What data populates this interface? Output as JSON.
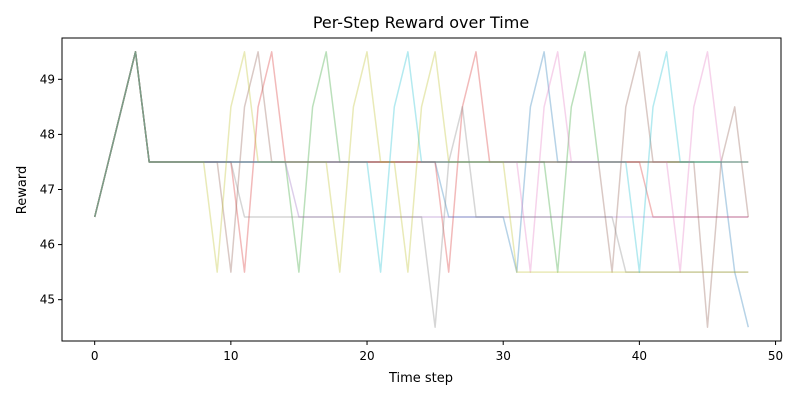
{
  "chart_data": {
    "type": "line",
    "title": "Per-Step Reward over Time",
    "xlabel": "Time step",
    "ylabel": "Reward",
    "xlim": [
      -2.4,
      50.4
    ],
    "ylim": [
      44.25,
      49.75
    ],
    "xticks": [
      0,
      10,
      20,
      30,
      40,
      50
    ],
    "yticks": [
      45,
      46,
      47,
      48,
      49
    ],
    "grid": false,
    "legend": "none",
    "x": [
      0,
      1,
      2,
      3,
      4,
      5,
      6,
      7,
      8,
      9,
      10,
      11,
      12,
      13,
      14,
      15,
      16,
      17,
      18,
      19,
      20,
      21,
      22,
      23,
      24,
      25,
      26,
      27,
      28,
      29,
      30,
      31,
      32,
      33,
      34,
      35,
      36,
      37,
      38,
      39,
      40,
      41,
      42,
      43,
      44,
      45,
      46,
      47,
      48
    ],
    "series": [
      {
        "color": "#1f77b4",
        "values": [
          46.5,
          47.5,
          48.5,
          49.5,
          47.5,
          47.5,
          47.5,
          47.5,
          47.5,
          47.5,
          47.5,
          47.5,
          47.5,
          47.5,
          47.5,
          47.5,
          47.5,
          47.5,
          47.5,
          47.5,
          47.5,
          47.5,
          47.5,
          47.5,
          47.5,
          47.5,
          46.5,
          46.5,
          46.5,
          46.5,
          46.5,
          45.5,
          48.5,
          49.5,
          47.5,
          47.5,
          47.5,
          47.5,
          47.5,
          47.5,
          47.5,
          47.5,
          47.5,
          47.5,
          47.5,
          47.5,
          47.5,
          45.5,
          44.5
        ]
      },
      {
        "color": "#ff7f0e",
        "values": [
          46.5,
          47.5,
          48.5,
          49.5,
          47.5,
          47.5,
          47.5,
          47.5,
          47.5,
          47.5,
          47.5,
          47.5,
          47.5,
          47.5,
          47.5,
          47.5,
          47.5,
          47.5,
          47.5,
          47.5,
          47.5,
          47.5,
          47.5,
          47.5,
          47.5,
          47.5,
          47.5,
          47.5,
          47.5,
          47.5,
          47.5,
          47.5,
          47.5,
          47.5,
          47.5,
          47.5,
          47.5,
          47.5,
          47.5,
          47.5,
          47.5,
          47.5,
          47.5,
          47.5,
          47.5,
          47.5,
          47.5,
          47.5,
          47.5
        ]
      },
      {
        "color": "#2ca02c",
        "values": [
          46.5,
          47.5,
          48.5,
          49.5,
          47.5,
          47.5,
          47.5,
          47.5,
          47.5,
          47.5,
          47.5,
          47.5,
          47.5,
          47.5,
          47.5,
          45.5,
          48.5,
          49.5,
          47.5,
          47.5,
          47.5,
          47.5,
          47.5,
          47.5,
          47.5,
          47.5,
          47.5,
          47.5,
          47.5,
          47.5,
          47.5,
          47.5,
          47.5,
          47.5,
          45.5,
          48.5,
          49.5,
          47.5,
          47.5,
          47.5,
          47.5,
          47.5,
          47.5,
          47.5,
          47.5,
          47.5,
          47.5,
          47.5,
          47.5
        ]
      },
      {
        "color": "#d62728",
        "values": [
          46.5,
          47.5,
          48.5,
          49.5,
          47.5,
          47.5,
          47.5,
          47.5,
          47.5,
          47.5,
          47.5,
          45.5,
          48.5,
          49.5,
          47.5,
          47.5,
          47.5,
          47.5,
          47.5,
          47.5,
          47.5,
          47.5,
          47.5,
          47.5,
          47.5,
          47.5,
          45.5,
          48.5,
          49.5,
          47.5,
          47.5,
          47.5,
          47.5,
          47.5,
          47.5,
          47.5,
          47.5,
          47.5,
          47.5,
          47.5,
          47.5,
          46.5,
          46.5,
          46.5,
          46.5,
          46.5,
          46.5,
          46.5,
          46.5
        ]
      },
      {
        "color": "#9467bd",
        "values": [
          46.5,
          47.5,
          48.5,
          49.5,
          47.5,
          47.5,
          47.5,
          47.5,
          47.5,
          47.5,
          47.5,
          47.5,
          47.5,
          47.5,
          47.5,
          46.5,
          46.5,
          46.5,
          46.5,
          46.5,
          46.5,
          46.5,
          46.5,
          46.5,
          46.5,
          46.5,
          46.5,
          46.5,
          46.5,
          46.5,
          46.5,
          46.5,
          46.5,
          46.5,
          46.5,
          46.5,
          46.5,
          46.5,
          46.5,
          46.5,
          46.5,
          46.5,
          46.5,
          46.5,
          46.5,
          46.5,
          46.5,
          46.5,
          46.5
        ]
      },
      {
        "color": "#8c564b",
        "values": [
          46.5,
          47.5,
          48.5,
          49.5,
          47.5,
          47.5,
          47.5,
          47.5,
          47.5,
          47.5,
          45.5,
          48.5,
          49.5,
          47.5,
          47.5,
          47.5,
          47.5,
          47.5,
          47.5,
          47.5,
          47.5,
          47.5,
          47.5,
          47.5,
          47.5,
          47.5,
          47.5,
          47.5,
          47.5,
          47.5,
          47.5,
          47.5,
          47.5,
          47.5,
          47.5,
          47.5,
          47.5,
          47.5,
          45.5,
          48.5,
          49.5,
          47.5,
          47.5,
          47.5,
          47.5,
          44.5,
          47.5,
          48.5,
          46.5
        ]
      },
      {
        "color": "#e377c2",
        "values": [
          46.5,
          47.5,
          48.5,
          49.5,
          47.5,
          47.5,
          47.5,
          47.5,
          47.5,
          47.5,
          47.5,
          47.5,
          47.5,
          47.5,
          47.5,
          47.5,
          47.5,
          47.5,
          47.5,
          47.5,
          47.5,
          47.5,
          47.5,
          47.5,
          47.5,
          47.5,
          47.5,
          47.5,
          47.5,
          47.5,
          47.5,
          47.5,
          45.5,
          48.5,
          49.5,
          47.5,
          47.5,
          47.5,
          47.5,
          47.5,
          47.5,
          47.5,
          47.5,
          45.5,
          48.5,
          49.5,
          47.5,
          47.5,
          47.5
        ]
      },
      {
        "color": "#7f7f7f",
        "values": [
          46.5,
          47.5,
          48.5,
          49.5,
          47.5,
          47.5,
          47.5,
          47.5,
          47.5,
          47.5,
          47.5,
          46.5,
          46.5,
          46.5,
          46.5,
          46.5,
          46.5,
          46.5,
          46.5,
          46.5,
          46.5,
          46.5,
          46.5,
          46.5,
          46.5,
          44.5,
          47.5,
          48.5,
          46.5,
          46.5,
          46.5,
          46.5,
          46.5,
          46.5,
          46.5,
          46.5,
          46.5,
          46.5,
          46.5,
          45.5,
          45.5,
          45.5,
          45.5,
          45.5,
          45.5,
          45.5,
          45.5,
          45.5,
          45.5
        ]
      },
      {
        "color": "#bcbd22",
        "values": [
          46.5,
          47.5,
          48.5,
          49.5,
          47.5,
          47.5,
          47.5,
          47.5,
          47.5,
          45.5,
          48.5,
          49.5,
          47.5,
          47.5,
          47.5,
          47.5,
          47.5,
          47.5,
          45.5,
          48.5,
          49.5,
          47.5,
          47.5,
          45.5,
          48.5,
          49.5,
          47.5,
          47.5,
          47.5,
          47.5,
          47.5,
          45.5,
          45.5,
          45.5,
          45.5,
          45.5,
          45.5,
          45.5,
          45.5,
          45.5,
          45.5,
          45.5,
          45.5,
          45.5,
          45.5,
          45.5,
          45.5,
          45.5,
          45.5
        ]
      },
      {
        "color": "#17becf",
        "values": [
          46.5,
          47.5,
          48.5,
          49.5,
          47.5,
          47.5,
          47.5,
          47.5,
          47.5,
          47.5,
          47.5,
          47.5,
          47.5,
          47.5,
          47.5,
          47.5,
          47.5,
          47.5,
          47.5,
          47.5,
          47.5,
          45.5,
          48.5,
          49.5,
          47.5,
          47.5,
          47.5,
          47.5,
          47.5,
          47.5,
          47.5,
          47.5,
          47.5,
          47.5,
          47.5,
          47.5,
          47.5,
          47.5,
          47.5,
          47.5,
          45.5,
          48.5,
          49.5,
          47.5,
          47.5,
          47.5,
          47.5,
          47.5,
          47.5
        ]
      }
    ]
  }
}
